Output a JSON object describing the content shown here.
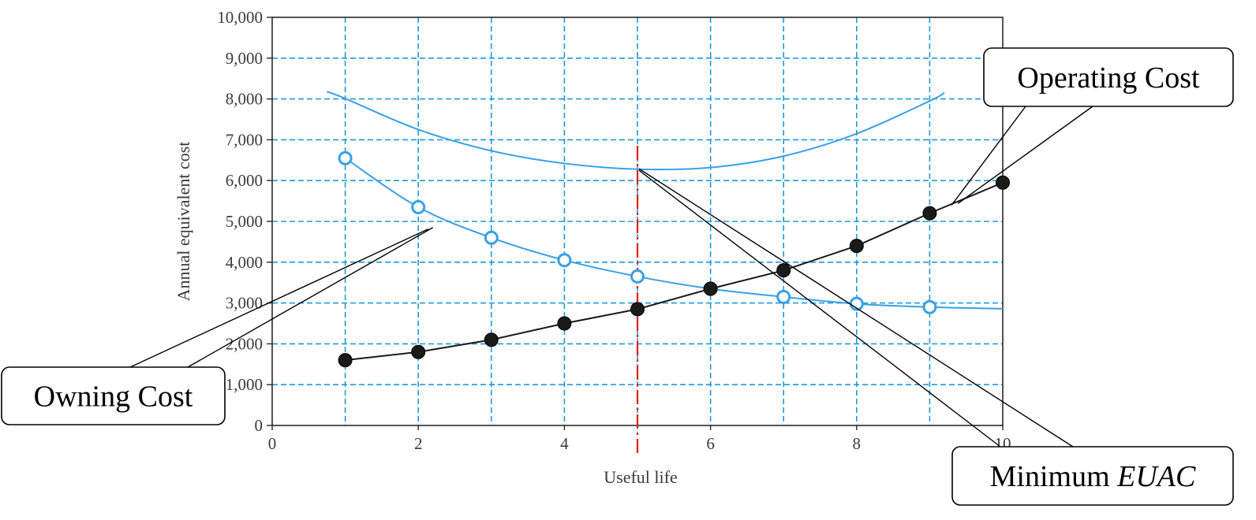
{
  "chart_data": {
    "type": "line",
    "title": "",
    "xlabel": "Useful life",
    "ylabel": "Annual equivalent cost",
    "xlim": [
      0,
      10
    ],
    "ylim": [
      0,
      10000
    ],
    "x_ticks": [
      "0",
      "2",
      "4",
      "6",
      "8",
      "10"
    ],
    "y_ticks": [
      "0",
      "1,000",
      "2,000",
      "3,000",
      "4,000",
      "5,000",
      "6,000",
      "7,000",
      "8,000",
      "9,000",
      "10,000"
    ],
    "grid": true,
    "series": [
      {
        "name": "Owning Cost",
        "marker": "open-circle",
        "color": "#3aa0e6",
        "x": [
          1,
          2,
          3,
          4,
          5,
          6,
          7,
          8,
          9
        ],
        "values": [
          6550,
          5350,
          4600,
          4050,
          3650,
          3350,
          3150,
          2980,
          2900
        ]
      },
      {
        "name": "Operating Cost",
        "marker": "filled-circle",
        "color": "#1a1a1a",
        "x": [
          1,
          2,
          3,
          4,
          5,
          6,
          7,
          8,
          9,
          10
        ],
        "values": [
          1600,
          1800,
          2100,
          2500,
          2850,
          3350,
          3800,
          4400,
          5200,
          5950
        ]
      },
      {
        "name": "",
        "marker": "none",
        "color": "#3aa0e6",
        "x": [
          0.75,
          1,
          2,
          3,
          4,
          5,
          6,
          7,
          8,
          9,
          9.2
        ],
        "values": [
          8180,
          8010,
          7250,
          6730,
          6420,
          6280,
          6320,
          6600,
          7150,
          7950,
          8150
        ]
      }
    ],
    "reference_line": {
      "x": 5,
      "color": "#e02020",
      "style": "dash-dot"
    },
    "annotations": [
      {
        "text": "Operating Cost",
        "target_x": 9.3,
        "target_y": 5400
      },
      {
        "text": "Owning Cost",
        "target_x": 2.2,
        "target_y": 4850
      },
      {
        "text": "Minimum",
        "text_italic": "EUAC",
        "target_x": 5,
        "target_y": 6250
      }
    ],
    "colors": {
      "grid": "#1e9be0",
      "axis": "#2a2a2a",
      "reference": "#e02020"
    }
  }
}
